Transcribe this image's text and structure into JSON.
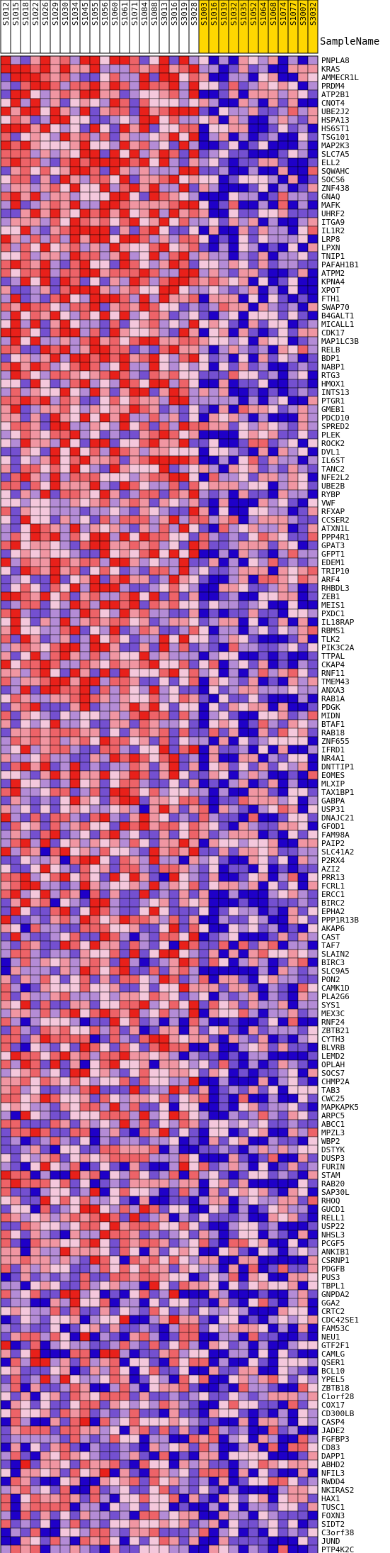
{
  "chart_data": {
    "type": "heatmap",
    "row_header": "SampleName",
    "columns": [
      {
        "name": "S1012",
        "group": "A"
      },
      {
        "name": "S1015",
        "group": "A"
      },
      {
        "name": "S1018",
        "group": "A"
      },
      {
        "name": "S1022",
        "group": "A"
      },
      {
        "name": "S1026",
        "group": "A"
      },
      {
        "name": "S1029",
        "group": "A"
      },
      {
        "name": "S1030",
        "group": "A"
      },
      {
        "name": "S1034",
        "group": "A"
      },
      {
        "name": "S1045",
        "group": "A"
      },
      {
        "name": "S1055",
        "group": "A"
      },
      {
        "name": "S1056",
        "group": "A"
      },
      {
        "name": "S1060",
        "group": "A"
      },
      {
        "name": "S1061",
        "group": "A"
      },
      {
        "name": "S1071",
        "group": "A"
      },
      {
        "name": "S1084",
        "group": "A"
      },
      {
        "name": "S1088",
        "group": "A"
      },
      {
        "name": "S3013",
        "group": "A"
      },
      {
        "name": "S3016",
        "group": "A"
      },
      {
        "name": "S3019",
        "group": "A"
      },
      {
        "name": "S3028",
        "group": "A"
      },
      {
        "name": "S1003",
        "group": "B"
      },
      {
        "name": "S1016",
        "group": "B"
      },
      {
        "name": "S1019",
        "group": "B"
      },
      {
        "name": "S1032",
        "group": "B"
      },
      {
        "name": "S1035",
        "group": "B"
      },
      {
        "name": "S1052",
        "group": "B"
      },
      {
        "name": "S1064",
        "group": "B"
      },
      {
        "name": "S1068",
        "group": "B"
      },
      {
        "name": "S1074",
        "group": "B"
      },
      {
        "name": "S1077",
        "group": "B"
      },
      {
        "name": "S3007",
        "group": "B"
      },
      {
        "name": "S3032",
        "group": "B"
      }
    ],
    "rows": [
      "PNPLA8",
      "KRAS",
      "AMMECR1L",
      "PRDM4",
      "ATP2B1",
      "CNOT4",
      "UBE2J2",
      "HSPA13",
      "HS6ST1",
      "TSG101",
      "MAP2K3",
      "SLC7A5",
      "ELL2",
      "SQWAHC",
      "SOCS6",
      "ZNF438",
      "GNAQ",
      "MAFK",
      "UHRF2",
      "ITGA9",
      "IL1R2",
      "LRP8",
      "LPXN",
      "TNIP1",
      "PAFAH1B1",
      "ATPM2",
      "KPNA4",
      "XPOT",
      "FTH1",
      "SWAP70",
      "B4GALT1",
      "MICALL1",
      "CDK17",
      "MAP1LC3B",
      "RELB",
      "BDP1",
      "NABP1",
      "RTG3",
      "HMOX1",
      "INTS13",
      "PTGR1",
      "GMEB1",
      "PDCD10",
      "SPRED2",
      "PLEK",
      "ROCK2",
      "DVL1",
      "IL6ST",
      "TANC2",
      "NFE2L2",
      "UBE2B",
      "RYBP",
      "VWF",
      "RFXAP",
      "CCSER2",
      "ATXN1L",
      "PPP4R1",
      "GPAT3",
      "GFPT1",
      "EDEM1",
      "TRIP10",
      "ARF4",
      "RHBDL3",
      "ZEB1",
      "MEIS1",
      "PXDC1",
      "IL18RAP",
      "RBMS1",
      "TLK2",
      "PIK3C2A",
      "TTPAL",
      "CKAP4",
      "RNF11",
      "TMEM43",
      "ANXA3",
      "RAB1A",
      "PDGK",
      "MIDN",
      "BTAF1",
      "RAB18",
      "ZNF655",
      "IFRD1",
      "NR4A1",
      "DNTTIP1",
      "EOMES",
      "MLXIP",
      "TAX1BP1",
      "GABPA",
      "USP31",
      "DNAJC21",
      "GFOD1",
      "FAM98A",
      "PAIP2",
      "SLC41A2",
      "P2RX4",
      "AZI2",
      "PRR13",
      "FCRL1",
      "ERCC1",
      "BIRC2",
      "EPHA2",
      "PPP1R13B",
      "AKAP6",
      "CAST",
      "TAF7",
      "SLAIN2",
      "BIRC3",
      "SLC9A5",
      "PON2",
      "CAMK1D",
      "PLA2G6",
      "SYS1",
      "MEX3C",
      "RNF24",
      "ZBTB21",
      "CYTH3",
      "BLVRB",
      "LEMD2",
      "OPLAH",
      "SOCS7",
      "CHMP2A",
      "TAB3",
      "CWC25",
      "MAPKAPK5",
      "ARPC5",
      "ABCC1",
      "MPZL3",
      "WBP2",
      "DSTYK",
      "DUSP3",
      "FURIN",
      "STAM",
      "RAB20",
      "SAP30L",
      "RHOQ",
      "GUCD1",
      "RELL1",
      "USP22",
      "NHSL3",
      "PCGF5",
      "ANKIB1",
      "CSRNP1",
      "PDGFB",
      "PUS3",
      "TBPL1",
      "GNPDA2",
      "GGA2",
      "CRTC2",
      "CDC42SE1",
      "FAM53C",
      "NEU1",
      "GTF2F1",
      "CAMLG",
      "QSER1",
      "BCL10",
      "YPEL5",
      "ZBTB18",
      "C1orf28",
      "COX17",
      "CD300LB",
      "CASP4",
      "JADE2",
      "FGFBP3",
      "CD83",
      "DAPP1",
      "ABHD2",
      "NFIL3",
      "RWDD4",
      "NKIRAS2",
      "HAX1",
      "TUSC1",
      "FOXN3",
      "SIDT2",
      "C3orf38",
      "JUND",
      "PTP4K2C"
    ],
    "group_colors": {
      "A": "#ffffff",
      "B": "#ffd700"
    },
    "color_scale": {
      "low": "#1f00c8",
      "mid": "#f4c8dc",
      "high": "#e8201a"
    },
    "seed": 20240611
  }
}
